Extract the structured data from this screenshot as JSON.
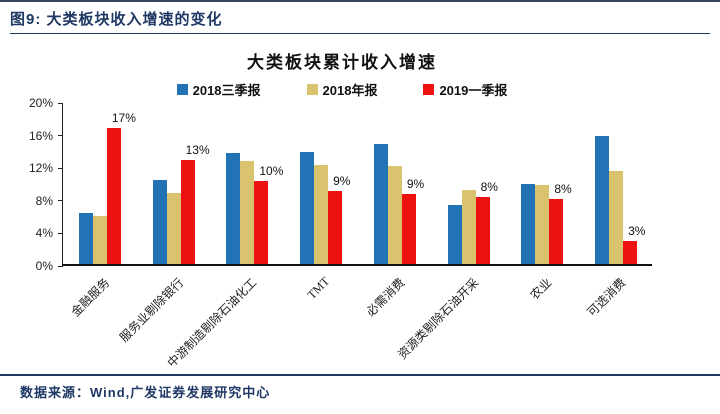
{
  "header": {
    "title": "图9: 大类板块收入增速的变化"
  },
  "footer": {
    "source": "数据来源：Wind,广发证券发展研究中心"
  },
  "colors": {
    "accent_navy": "#1F3864",
    "series_blue": "#2273B6",
    "series_gold": "#D9C36F",
    "series_red": "#EE1111",
    "axis": "#111111"
  },
  "chart_data": {
    "type": "bar",
    "title": "大类板块累计收入增速",
    "categories": [
      "金融服务",
      "服务业剔除银行",
      "中游制造剔除石油化工",
      "TMT",
      "必需消费",
      "资源类剔除石油开采",
      "农业",
      "可选消费"
    ],
    "series": [
      {
        "name": "2018三季报",
        "color": "#2273B6",
        "values": [
          6.2,
          10.3,
          13.6,
          13.8,
          14.7,
          7.2,
          9.8,
          15.7
        ]
      },
      {
        "name": "2018年报",
        "color": "#D9C36F",
        "values": [
          5.9,
          8.7,
          12.6,
          12.1,
          12.0,
          9.1,
          9.7,
          11.4
        ]
      },
      {
        "name": "2019一季报",
        "color": "#EE1111",
        "values": [
          16.7,
          12.7,
          10.2,
          9.0,
          8.6,
          8.2,
          8.0,
          2.8
        ],
        "data_labels": [
          "17%",
          "13%",
          "10%",
          "9%",
          "9%",
          "8%",
          "8%",
          "3%"
        ]
      }
    ],
    "xlabel": "",
    "ylabel": "",
    "ylim": [
      0,
      20
    ],
    "ytick_step": 4,
    "ytick_labels": [
      "0%",
      "4%",
      "8%",
      "12%",
      "16%",
      "20%"
    ],
    "legend_position": "top",
    "grid": false
  }
}
